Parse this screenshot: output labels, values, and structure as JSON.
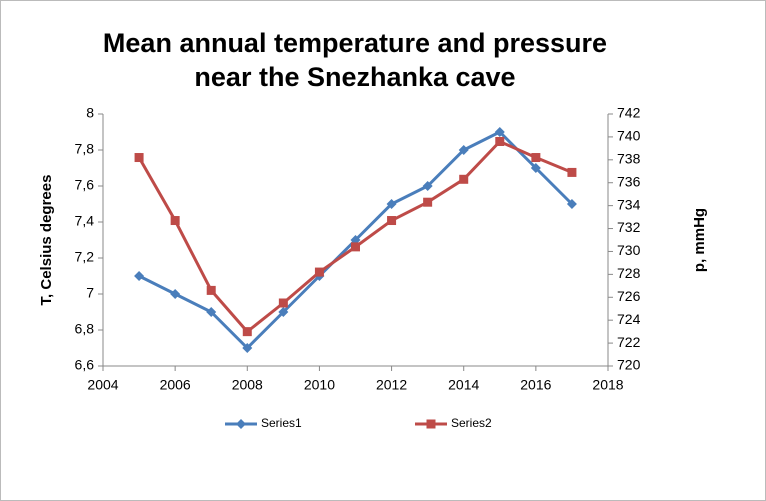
{
  "chart_data": {
    "type": "line",
    "title": [
      "Mean annual temperature and pressure",
      "near the Snezhanka cave"
    ],
    "ylabel": "T, Celsius degrees",
    "y2label": "p, mmHg",
    "x": [
      2005,
      2006,
      2007,
      2008,
      2009,
      2010,
      2011,
      2012,
      2013,
      2014,
      2015,
      2016,
      2017
    ],
    "xlim": [
      2004,
      2018
    ],
    "xticks": [
      2004,
      2006,
      2008,
      2010,
      2012,
      2014,
      2016,
      2018
    ],
    "ylim": [
      6.6,
      8
    ],
    "yticks": [
      {
        "value": 6.6,
        "label": "6,6"
      },
      {
        "value": 6.8,
        "label": "6,8"
      },
      7,
      {
        "value": 7.2,
        "label": "7,2"
      },
      {
        "value": 7.4,
        "label": "7,4"
      },
      {
        "value": 7.6,
        "label": "7,6"
      },
      {
        "value": 7.8,
        "label": "7,8"
      },
      8
    ],
    "y2lim": [
      720,
      742
    ],
    "y2ticks": [
      720,
      722,
      724,
      726,
      728,
      730,
      732,
      734,
      736,
      738,
      740,
      742
    ],
    "grid": false,
    "legend": "bottom",
    "series": [
      {
        "name": "Series1",
        "color": "#4a7ebb",
        "marker": "diamond",
        "values": [
          7.1,
          7.0,
          6.9,
          6.7,
          6.9,
          7.1,
          7.3,
          7.5,
          7.6,
          7.8,
          7.9,
          7.7,
          7.5
        ]
      },
      {
        "name": "Series2",
        "color": "#be4b48",
        "marker": "square",
        "axis": "y2",
        "values": [
          738.2,
          732.7,
          726.6,
          723.0,
          725.5,
          728.2,
          730.4,
          732.7,
          734.3,
          736.3,
          739.6,
          738.2,
          736.9
        ]
      }
    ]
  }
}
